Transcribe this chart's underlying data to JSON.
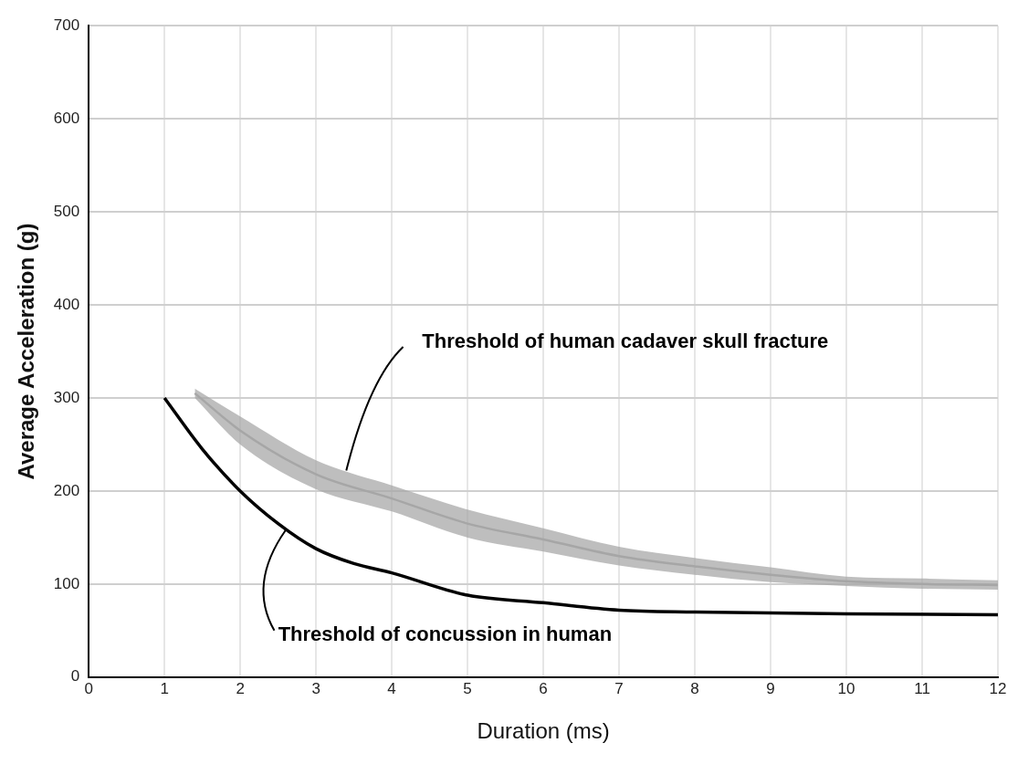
{
  "chart_data": {
    "type": "line",
    "xlabel": "Duration (ms)",
    "ylabel": "Average Acceleration (g)",
    "xlim": [
      0,
      12
    ],
    "xticks": [
      0,
      1,
      2,
      3,
      4,
      5,
      6,
      7,
      8,
      9,
      10,
      11,
      12
    ],
    "ylim": [
      0,
      700
    ],
    "yticks": [
      0,
      100,
      200,
      300,
      400,
      500,
      600,
      700
    ],
    "grid": true,
    "legend": false,
    "marker": "none",
    "line_style": "solid",
    "series": [
      {
        "name": "Threshold of human cadaver skull fracture",
        "color": "#a6a6a6",
        "x": [
          1.4,
          2,
          3,
          4,
          5,
          6,
          7,
          8,
          9,
          10,
          11,
          12
        ],
        "values": [
          305,
          265,
          218,
          192,
          165,
          148,
          130,
          119,
          110,
          103,
          100,
          99
        ],
        "lower": [
          300,
          250,
          202,
          178,
          150,
          135,
          120,
          110,
          102,
          98,
          95,
          94
        ],
        "upper": [
          310,
          280,
          233,
          206,
          180,
          160,
          140,
          128,
          118,
          108,
          106,
          104
        ]
      },
      {
        "name": "Threshold of concussion in human",
        "color": "#000000",
        "x": [
          1,
          1.5,
          2,
          2.5,
          3,
          3.5,
          4,
          5,
          6,
          7,
          8,
          10,
          12
        ],
        "values": [
          300,
          245,
          200,
          165,
          138,
          122,
          112,
          88,
          80,
          72,
          70,
          68,
          67
        ]
      }
    ]
  }
}
